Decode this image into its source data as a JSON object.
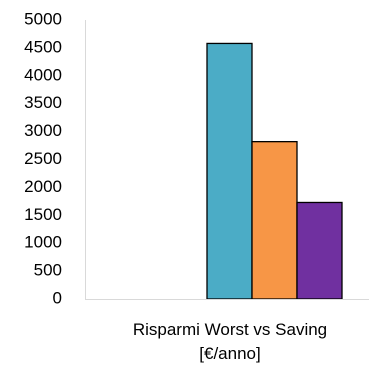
{
  "chart_data": {
    "type": "bar",
    "categories": [
      "Risparmi Worst vs Saving [€/anno]"
    ],
    "series": [
      {
        "values": [
          0
        ]
      },
      {
        "values": [
          0
        ]
      },
      {
        "color": "#4bacc6",
        "values": [
          4580
        ]
      },
      {
        "color": "#f79646",
        "values": [
          2820
        ]
      },
      {
        "color": "#7030a0",
        "values": [
          1730
        ]
      }
    ],
    "ylim": [
      0,
      5000
    ],
    "yticks": [
      0,
      500,
      1000,
      1500,
      2000,
      2500,
      3000,
      3500,
      4000,
      4500,
      5000
    ],
    "grid": false
  }
}
